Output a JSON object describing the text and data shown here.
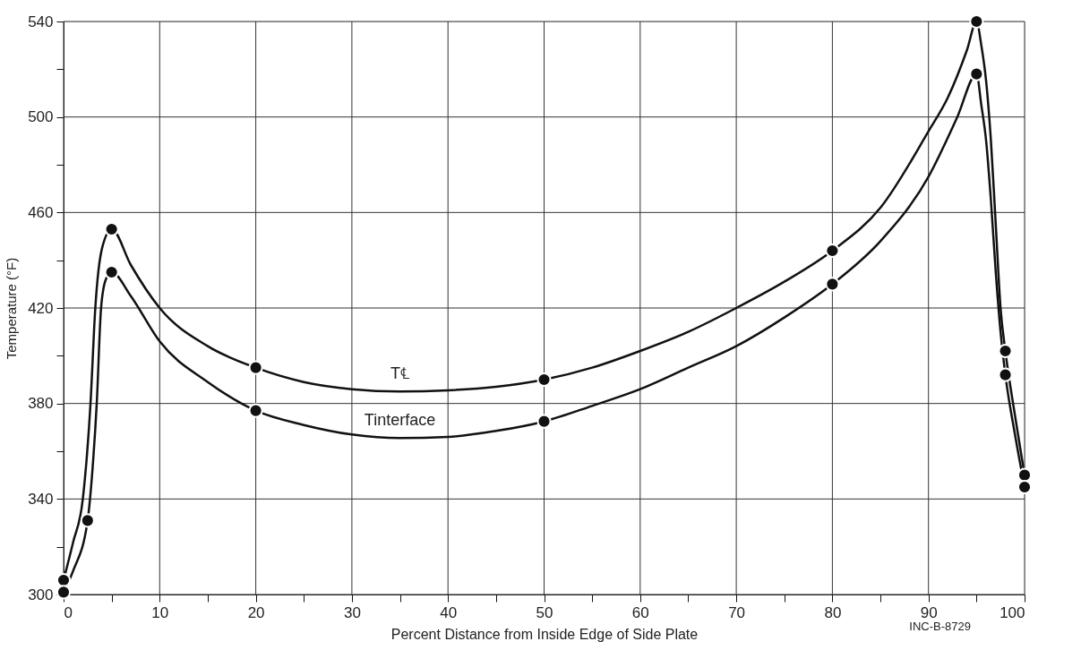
{
  "chart_data": {
    "type": "line",
    "xlabel": "Percent Distance from Inside Edge of Side Plate",
    "ylabel": "Temperature (°F)",
    "xlim": [
      0,
      100
    ],
    "ylim": [
      300,
      540
    ],
    "xticks": [
      0,
      {
        "value": 5,
        "label": null
      },
      10,
      {
        "value": 15,
        "label": null
      },
      20,
      {
        "value": 25,
        "label": null
      },
      30,
      {
        "value": 35,
        "label": null
      },
      40,
      {
        "value": 45,
        "label": null
      },
      50,
      {
        "value": 55,
        "label": null
      },
      60,
      {
        "value": 65,
        "label": null
      },
      70,
      {
        "value": 75,
        "label": null
      },
      80,
      {
        "value": 85,
        "label": null
      },
      90,
      {
        "value": 95,
        "label": null
      },
      100
    ],
    "yticks": [
      300,
      {
        "value": 320,
        "label": null
      },
      340,
      {
        "value": 360,
        "label": null
      },
      380,
      {
        "value": 400,
        "label": null
      },
      420,
      {
        "value": 440,
        "label": null
      },
      460,
      {
        "value": 480,
        "label": null
      },
      500,
      {
        "value": 520,
        "label": null
      },
      540
    ],
    "grid": true,
    "line_style": "solid",
    "series": [
      {
        "name": "T℄",
        "marker": "none",
        "color": "#111111",
        "x": [
          0,
          1,
          2,
          2.8,
          3.3,
          4,
          5,
          7,
          10,
          15,
          20,
          25,
          30,
          35,
          40,
          45,
          50,
          55,
          60,
          65,
          70,
          75,
          80,
          85,
          90,
          92,
          94,
          95,
          95.5,
          96,
          96.5,
          97,
          97.5,
          98,
          99,
          100
        ],
        "values": [
          306,
          322,
          340,
          380,
          420,
          445,
          453,
          438,
          420,
          404,
          395,
          389,
          386,
          385,
          385.5,
          387,
          390,
          395,
          402,
          410,
          420,
          431,
          444,
          462,
          494,
          508,
          528,
          540,
          530,
          515,
          490,
          455,
          420,
          402,
          375,
          350
        ]
      },
      {
        "name": "Tinterface",
        "marker": "none",
        "color": "#111111",
        "x": [
          0,
          1,
          2.5,
          3,
          3.45,
          3.9,
          4.4,
          5,
          7,
          10,
          15,
          20,
          25,
          30,
          35,
          40,
          45,
          50,
          55,
          60,
          65,
          70,
          75,
          80,
          85,
          90,
          93,
          95,
          95.5,
          96,
          96.5,
          97,
          97.5,
          98,
          99,
          100
        ],
        "values": [
          301,
          310,
          331,
          352,
          380,
          420,
          432,
          435,
          425,
          406,
          389,
          377,
          371,
          367,
          365.5,
          366,
          368.5,
          372.5,
          379,
          386,
          395,
          404,
          416,
          430,
          448,
          475,
          500,
          518,
          505,
          490,
          465,
          435,
          410,
          392,
          367,
          345
        ]
      },
      {
        "type": "scatter",
        "marker": "circle",
        "color": "#111111",
        "x": [
          0,
          5,
          20,
          50,
          80,
          95,
          98,
          100
        ],
        "values": [
          306,
          453,
          395,
          390,
          444,
          540,
          402,
          350
        ]
      },
      {
        "type": "scatter",
        "marker": "circle",
        "color": "#111111",
        "x": [
          0,
          2.5,
          5,
          20,
          50,
          80,
          95,
          98,
          100
        ],
        "values": [
          301,
          331,
          435,
          377,
          372.5,
          430,
          518,
          392,
          345
        ]
      }
    ],
    "annotations": [
      "INC-B-8729"
    ]
  }
}
